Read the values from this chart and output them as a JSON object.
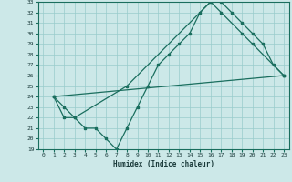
{
  "xlabel": "Humidex (Indice chaleur)",
  "xlim": [
    -0.5,
    23.5
  ],
  "ylim": [
    19,
    33
  ],
  "xticks": [
    0,
    1,
    2,
    3,
    4,
    5,
    6,
    7,
    8,
    9,
    10,
    11,
    12,
    13,
    14,
    15,
    16,
    17,
    18,
    19,
    20,
    21,
    22,
    23
  ],
  "yticks": [
    19,
    20,
    21,
    22,
    23,
    24,
    25,
    26,
    27,
    28,
    29,
    30,
    31,
    32,
    33
  ],
  "bg_color": "#cce8e8",
  "line_color": "#1a6e5e",
  "grid_color": "#99cccc",
  "line1_x": [
    1,
    2,
    3,
    4,
    5,
    6,
    7,
    8,
    9,
    10,
    11,
    12,
    13,
    14,
    15,
    16,
    17,
    18,
    19,
    20,
    21,
    22,
    23
  ],
  "line1_y": [
    24,
    23,
    22,
    21,
    21,
    20,
    19,
    21,
    23,
    25,
    27,
    28,
    29,
    30,
    32,
    33,
    33,
    32,
    31,
    30,
    29,
    27,
    26
  ],
  "line2_x": [
    1,
    2,
    3,
    8,
    16,
    17,
    19,
    20,
    23
  ],
  "line2_y": [
    24,
    22,
    22,
    25,
    33,
    32,
    30,
    29,
    26
  ],
  "line3_x": [
    1,
    23
  ],
  "line3_y": [
    24,
    26
  ]
}
